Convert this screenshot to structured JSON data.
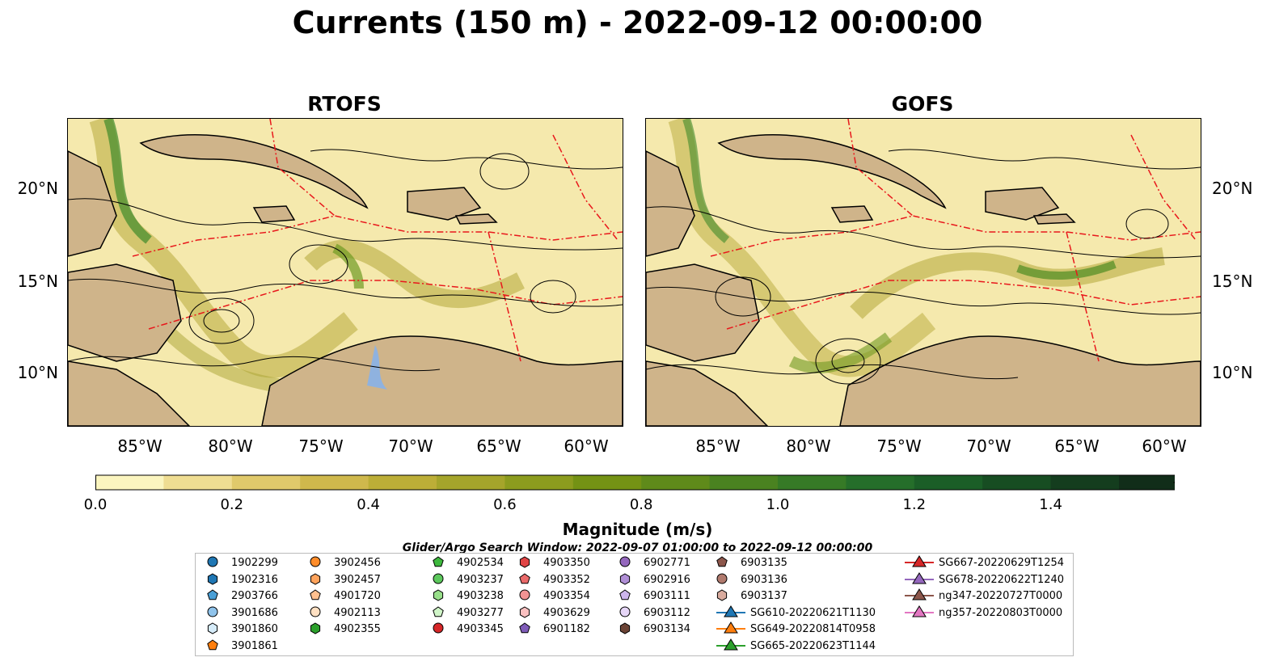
{
  "title": "Currents (150 m) - 2022-09-12 00:00:00",
  "panels": [
    {
      "title": "RTOFS"
    },
    {
      "title": "GOFS"
    }
  ],
  "lon_ticks": [
    "85°W",
    "80°W",
    "75°W",
    "70°W",
    "65°W",
    "60°W"
  ],
  "lat_ticks": [
    "20°N",
    "15°N",
    "10°N"
  ],
  "colorbar": {
    "label": "Magnitude (m/s)",
    "ticks": [
      "0.0",
      "0.2",
      "0.4",
      "0.6",
      "0.8",
      "1.0",
      "1.2",
      "1.4"
    ],
    "colors": [
      "#fbf5bf",
      "#efdd92",
      "#e0c96b",
      "#cfb84c",
      "#bcae37",
      "#a5a52b",
      "#8c9c1e",
      "#749214",
      "#5f8a1a",
      "#4a8220",
      "#367a26",
      "#256e2a",
      "#1b5e27",
      "#174d22",
      "#143d1e",
      "#112d19"
    ]
  },
  "search_window": "Glider/Argo Search Window: 2022-09-07 01:00:00 to 2022-09-12 00:00:00",
  "legend": [
    {
      "label": "1902299",
      "shape": "circle",
      "color": "#1f77b4"
    },
    {
      "label": "1902316",
      "shape": "hexagon",
      "color": "#1f77b4"
    },
    {
      "label": "2903766",
      "shape": "pentagon",
      "color": "#4a9fd6"
    },
    {
      "label": "3901686",
      "shape": "circle",
      "color": "#8fc3eb"
    },
    {
      "label": "3901860",
      "shape": "hexagon",
      "color": "#d6ecfa"
    },
    {
      "label": "3901861",
      "shape": "pentagon",
      "color": "#ff7f0e"
    },
    {
      "label": "3902456",
      "shape": "circle",
      "color": "#ff8c29"
    },
    {
      "label": "3902457",
      "shape": "hexagon",
      "color": "#ffa35c"
    },
    {
      "label": "4901720",
      "shape": "pentagon",
      "color": "#ffc08f"
    },
    {
      "label": "4902113",
      "shape": "circle",
      "color": "#ffe0c2"
    },
    {
      "label": "4902355",
      "shape": "hexagon",
      "color": "#2ca02c"
    },
    {
      "label": "4902534",
      "shape": "pentagon",
      "color": "#3db83d"
    },
    {
      "label": "4903237",
      "shape": "circle",
      "color": "#5cc85c"
    },
    {
      "label": "4903238",
      "shape": "hexagon",
      "color": "#98df8a"
    },
    {
      "label": "4903277",
      "shape": "pentagon",
      "color": "#d0f5c8"
    },
    {
      "label": "4903345",
      "shape": "circle",
      "color": "#d62728"
    },
    {
      "label": "4903350",
      "shape": "hexagon",
      "color": "#e04445"
    },
    {
      "label": "4903352",
      "shape": "pentagon",
      "color": "#ea6a6a"
    },
    {
      "label": "4903354",
      "shape": "circle",
      "color": "#f29393"
    },
    {
      "label": "4903629",
      "shape": "hexagon",
      "color": "#fac0c0"
    },
    {
      "label": "6901182",
      "shape": "pentagon",
      "color": "#7f5cb8"
    },
    {
      "label": "6902771",
      "shape": "circle",
      "color": "#9467bd"
    },
    {
      "label": "6902916",
      "shape": "hexagon",
      "color": "#b08fd6"
    },
    {
      "label": "6903111",
      "shape": "pentagon",
      "color": "#cdb5ec"
    },
    {
      "label": "6903112",
      "shape": "circle",
      "color": "#e6d6f7"
    },
    {
      "label": "6903134",
      "shape": "hexagon",
      "color": "#6b4335"
    },
    {
      "label": "6903135",
      "shape": "pentagon",
      "color": "#8c564b"
    },
    {
      "label": "6903136",
      "shape": "circle",
      "color": "#b07a6e"
    },
    {
      "label": "6903137",
      "shape": "hexagon",
      "color": "#d9ab9e"
    },
    {
      "label": "SG610-20220621T1130",
      "shape": "triangle",
      "color": "#1f77b4"
    },
    {
      "label": "SG649-20220814T0958",
      "shape": "triangle",
      "color": "#ff7f0e"
    },
    {
      "label": "SG665-20220623T1144",
      "shape": "triangle",
      "color": "#2ca02c"
    },
    {
      "label": "SG667-20220629T1254",
      "shape": "triangle",
      "color": "#d62728"
    },
    {
      "label": "SG678-20220622T1240",
      "shape": "triangle",
      "color": "#9467bd"
    },
    {
      "label": "ng347-20220727T0000",
      "shape": "triangle",
      "color": "#8c564b"
    },
    {
      "label": "ng357-20220803T0000",
      "shape": "triangle",
      "color": "#e377c2"
    }
  ],
  "colors": {
    "ocean_low": "#f7efb8",
    "land": "#cfb48a",
    "shelf": "#8fb2df",
    "eez": "#e8181c"
  }
}
